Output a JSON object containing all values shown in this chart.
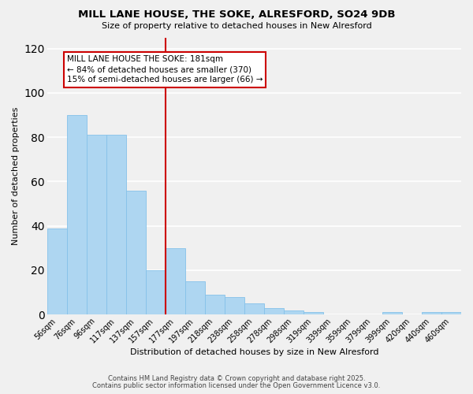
{
  "title": "MILL LANE HOUSE, THE SOKE, ALRESFORD, SO24 9DB",
  "subtitle": "Size of property relative to detached houses in New Alresford",
  "xlabel": "Distribution of detached houses by size in New Alresford",
  "ylabel": "Number of detached properties",
  "bar_labels": [
    "56sqm",
    "76sqm",
    "96sqm",
    "117sqm",
    "137sqm",
    "157sqm",
    "177sqm",
    "197sqm",
    "218sqm",
    "238sqm",
    "258sqm",
    "278sqm",
    "298sqm",
    "319sqm",
    "339sqm",
    "359sqm",
    "379sqm",
    "399sqm",
    "420sqm",
    "440sqm",
    "460sqm"
  ],
  "bar_values": [
    39,
    90,
    81,
    81,
    56,
    20,
    30,
    15,
    9,
    8,
    5,
    3,
    2,
    1,
    0,
    0,
    0,
    1,
    0,
    1,
    1
  ],
  "bar_color": "#aed6f1",
  "bar_edge_color": "#85c1e9",
  "vline_color": "#cc0000",
  "vline_pos": 6.0,
  "ylim": [
    0,
    125
  ],
  "yticks": [
    0,
    20,
    40,
    60,
    80,
    100,
    120
  ],
  "background_color": "#f0f0f0",
  "plot_bg_color": "#f0f0f0",
  "grid_color": "#ffffff",
  "annotation_title": "MILL LANE HOUSE THE SOKE: 181sqm",
  "annotation_line1": "← 84% of detached houses are smaller (370)",
  "annotation_line2": "15% of semi-detached houses are larger (66) →",
  "annotation_box_edge": "#cc0000",
  "footer1": "Contains HM Land Registry data © Crown copyright and database right 2025.",
  "footer2": "Contains public sector information licensed under the Open Government Licence v3.0.",
  "title_fontsize": 9.5,
  "subtitle_fontsize": 8.0,
  "footer_fontsize": 6.0,
  "axis_label_fontsize": 8.0,
  "tick_fontsize": 7.0,
  "ann_fontsize": 7.5
}
